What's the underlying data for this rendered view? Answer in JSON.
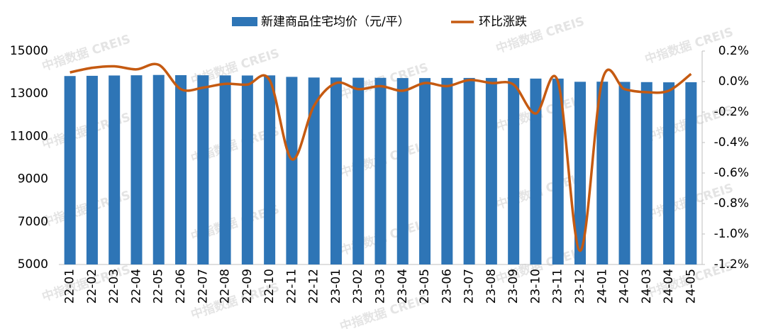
{
  "chart_data": {
    "type": "bar_line",
    "watermark": "中指数据 CREIS",
    "categories": [
      "22-01",
      "22-02",
      "22-03",
      "22-04",
      "22-05",
      "22-06",
      "22-07",
      "22-08",
      "22-09",
      "22-10",
      "22-11",
      "22-12",
      "23-01",
      "23-02",
      "23-03",
      "23-04",
      "23-05",
      "23-06",
      "23-07",
      "23-08",
      "23-09",
      "23-10",
      "23-11",
      "23-12",
      "24-01",
      "24-02",
      "24-03",
      "24-04",
      "24-05"
    ],
    "series": [
      {
        "name": "新建商品住宅均价（元/平）",
        "type": "bar",
        "color": "#2e75b6",
        "values": [
          13830,
          13840,
          13855,
          13865,
          13880,
          13870,
          13865,
          13860,
          13855,
          13860,
          13790,
          13760,
          13760,
          13750,
          13745,
          13735,
          13735,
          13740,
          13740,
          13740,
          13735,
          13710,
          13710,
          13560,
          13565,
          13555,
          13545,
          13535,
          13540
        ]
      },
      {
        "name": "环比涨跌",
        "type": "line",
        "axis": "y2",
        "color": "#c55a11",
        "values": [
          0.06,
          0.09,
          0.1,
          0.08,
          0.11,
          -0.05,
          -0.04,
          -0.015,
          -0.02,
          0.01,
          -0.51,
          -0.16,
          -0.01,
          -0.05,
          -0.03,
          -0.06,
          -0.01,
          -0.03,
          0.01,
          -0.01,
          -0.02,
          -0.21,
          0.0,
          -1.11,
          0.01,
          -0.05,
          -0.07,
          -0.06,
          0.05
        ]
      }
    ],
    "ylim": [
      5000,
      15000
    ],
    "yticks": [
      5000,
      7000,
      9000,
      11000,
      13000,
      15000
    ],
    "y2lim": [
      -1.2,
      0.2
    ],
    "y2ticks": [
      {
        "value": -1.2,
        "label": "-1.2%"
      },
      {
        "value": -1.0,
        "label": "-1.0%"
      },
      {
        "value": -0.8,
        "label": "-0.8%"
      },
      {
        "value": -0.6,
        "label": "-0.6%"
      },
      {
        "value": -0.4,
        "label": "-0.4%"
      },
      {
        "value": -0.2,
        "label": "-0.2%"
      },
      {
        "value": 0.0,
        "label": "0.0%"
      },
      {
        "value": 0.2,
        "label": "0.2%"
      }
    ],
    "grid": false,
    "legend": "top"
  }
}
